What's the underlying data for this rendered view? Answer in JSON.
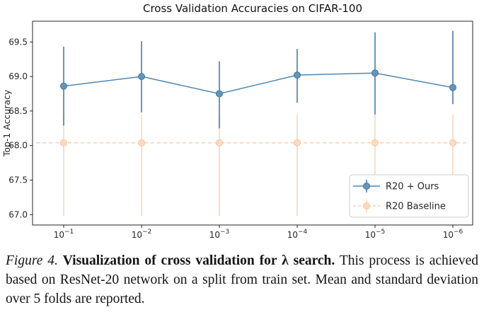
{
  "chart_data": {
    "type": "line",
    "title": "Cross Validation Accuracies on CIFAR-100",
    "xlabel": "",
    "ylabel": "Top-1 Accuracy",
    "x_labels": [
      "10^-1",
      "10^-2",
      "10^-3",
      "10^-4",
      "10^-5",
      "10^-6"
    ],
    "x_exponents": [
      -1,
      -2,
      -3,
      -4,
      -5,
      -6
    ],
    "ylim": [
      66.85,
      69.8
    ],
    "yticks": [
      67.0,
      67.5,
      68.0,
      68.5,
      69.0,
      69.5
    ],
    "grid": false,
    "legend_position": "lower right",
    "series": [
      {
        "name": "R20 + Ours",
        "style": "errorbar-line",
        "line_style": "solid",
        "marker": "circle",
        "line_color": "#5187b0",
        "error_color": "#4a7ba6",
        "marker_fill": "#6396bb",
        "marker_edge": "#3f74a0",
        "extends_full_width": false,
        "values": [
          68.86,
          69.0,
          68.75,
          69.02,
          69.05,
          68.84
        ],
        "err_high": [
          69.43,
          69.51,
          69.22,
          69.4,
          69.64,
          69.66
        ],
        "err_low": [
          68.29,
          68.48,
          68.25,
          68.62,
          68.45,
          68.6
        ]
      },
      {
        "name": "R20 Baseline",
        "style": "errorbar-line",
        "line_style": "dashed",
        "marker": "circle",
        "line_color": "#f8cfae",
        "error_color": "#f9d5ba",
        "marker_fill": "#fbdcc3",
        "marker_edge": "#f6c69e",
        "extends_full_width": true,
        "values": [
          68.04,
          68.04,
          68.04,
          68.04,
          68.04,
          68.04
        ],
        "err_high": [
          68.45,
          68.45,
          68.45,
          68.45,
          68.45,
          68.45
        ],
        "err_low": [
          66.98,
          66.98,
          66.98,
          66.98,
          66.98,
          66.98
        ]
      }
    ]
  },
  "caption": {
    "figure_label": "Figure 4.",
    "bold_text": "Visualization of cross validation for λ search.",
    "body_text": "This process is achieved based on ResNet-20 network on a split from train set. Mean and standard deviation over 5 folds are reported."
  }
}
